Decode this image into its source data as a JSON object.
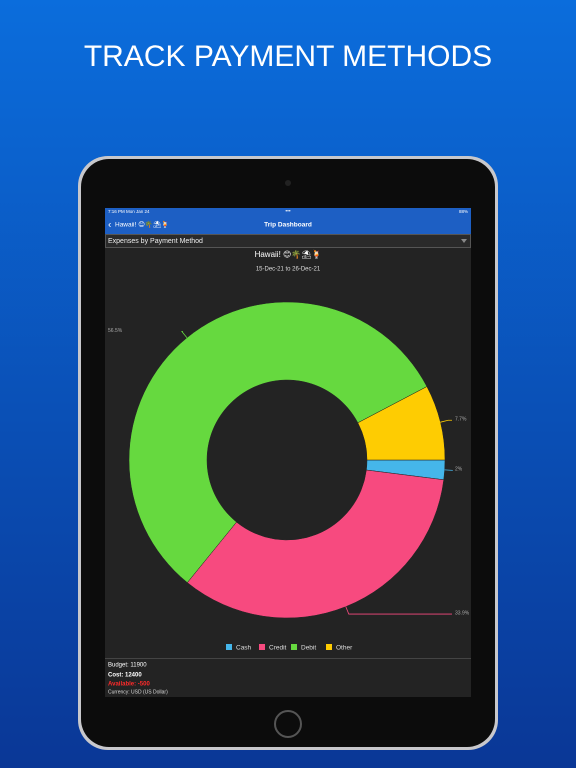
{
  "heading": "TRACK PAYMENT METHODS",
  "status_bar": {
    "time": "7:16 PM  Mon Jan 24",
    "battery": "88%"
  },
  "nav": {
    "back": "Hawaii! 😊🌴⛱🍹",
    "title": "Trip Dashboard"
  },
  "dropdown": "Expenses by Payment Method",
  "chart_data": {
    "type": "pie",
    "title": "Hawaii! 😊🌴⛱🍹",
    "subtitle": "15-Dec-21 to 26-Dec-21",
    "categories": [
      "Cash",
      "Credit",
      "Debit",
      "Other"
    ],
    "values": [
      2,
      33.9,
      56.5,
      7.7
    ],
    "value_labels": [
      "2%",
      "33.9%",
      "56.5%",
      "7.7%"
    ],
    "colors": [
      "#45b6ea",
      "#f74a7f",
      "#66d93f",
      "#fecc02"
    ],
    "donut": true
  },
  "summary": {
    "budget": "Budget: 11900",
    "cost": "Cost: 12400",
    "available": "Available: -500",
    "currency": "Currency: USD (US Dollar)"
  }
}
